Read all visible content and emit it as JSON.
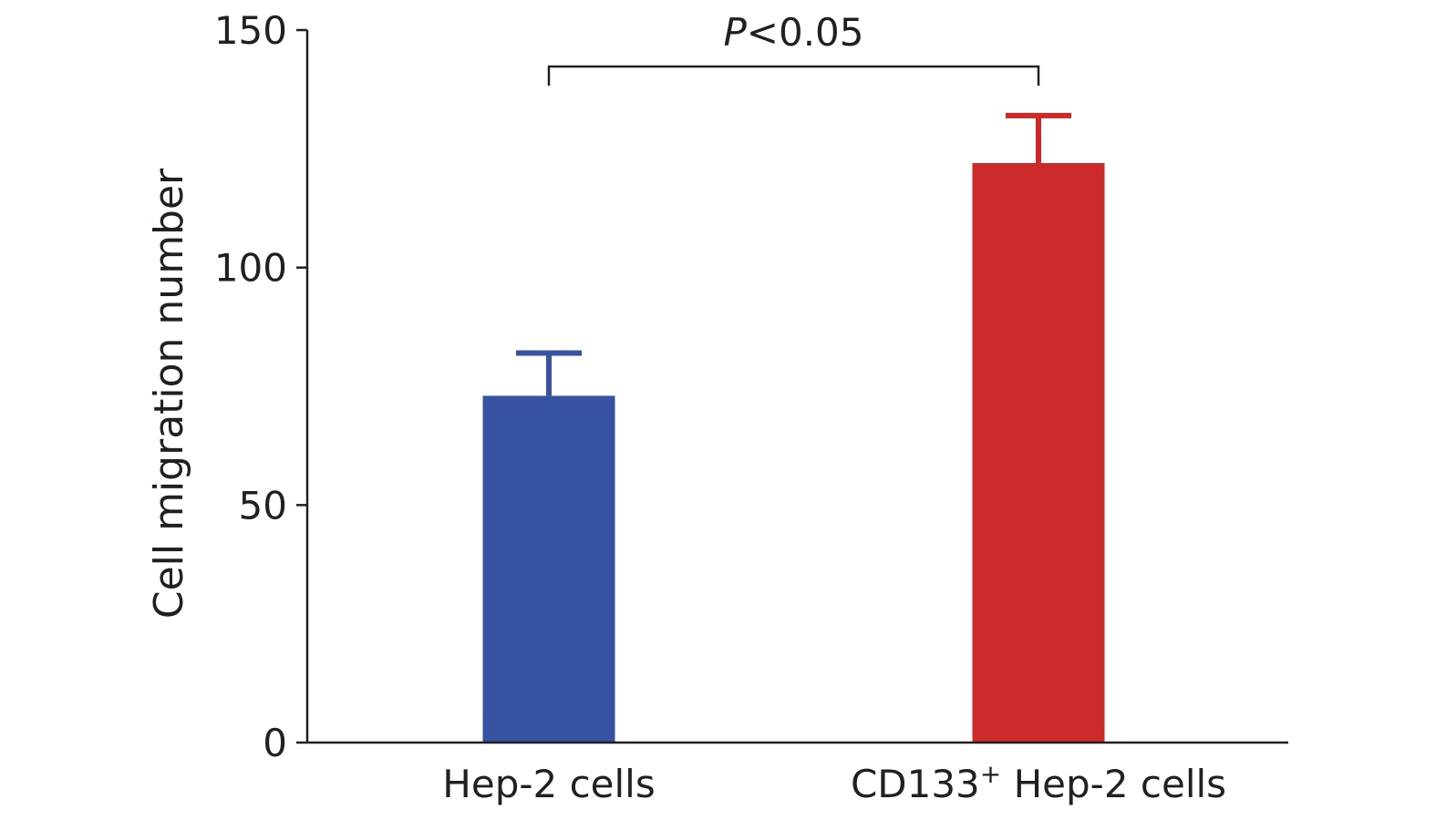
{
  "chart_data": {
    "type": "bar",
    "categories": [
      "Hep-2 cells",
      "CD133+ Hep-2 cells"
    ],
    "category_labels": [
      {
        "main": "Hep-2 cells",
        "sup": ""
      },
      {
        "main": "CD133",
        "sup": "+",
        "rest": " Hep-2 cells"
      }
    ],
    "values": [
      73,
      122
    ],
    "errors": [
      9,
      10
    ],
    "colors": [
      "#3652a0",
      "#cb2a29"
    ],
    "ylabel": "Cell migration number",
    "xlabel": "",
    "ylim": [
      0,
      150
    ],
    "yticks": [
      0,
      50,
      100,
      150
    ],
    "grid": false,
    "annotation": {
      "italic_part": "P",
      "rest": "<0.05",
      "between": [
        0,
        1
      ]
    }
  }
}
